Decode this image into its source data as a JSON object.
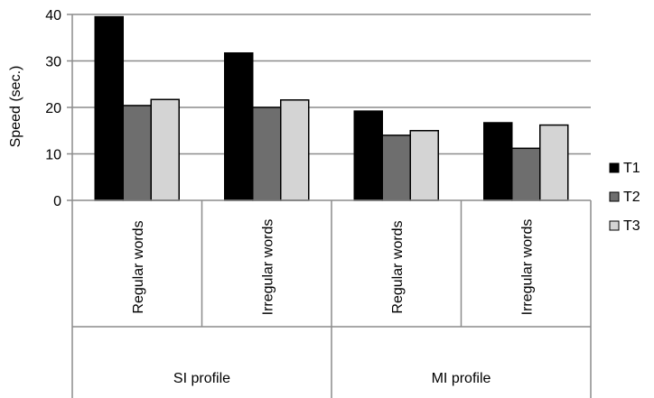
{
  "chart_data": {
    "type": "bar",
    "ylabel": "Speed (sec.)",
    "ylim": [
      0,
      40
    ],
    "yticks": [
      0,
      10,
      20,
      30,
      40
    ],
    "grid": true,
    "legend_position": "right",
    "groups": [
      {
        "name": "SI profile",
        "categories": [
          "Regular words",
          "Irregular words"
        ]
      },
      {
        "name": "MI profile",
        "categories": [
          "Regular words",
          "Irregular words"
        ]
      }
    ],
    "categories": [
      "Regular words",
      "Irregular words",
      "Regular words",
      "Irregular words"
    ],
    "series": [
      {
        "name": "T1",
        "color": "#000000",
        "values": [
          39.5,
          31.7,
          19.2,
          16.7
        ]
      },
      {
        "name": "T2",
        "color": "#6e6e6e",
        "values": [
          20.4,
          20.0,
          14.0,
          11.2
        ]
      },
      {
        "name": "T3",
        "color": "#d4d4d4",
        "values": [
          21.7,
          21.6,
          15.0,
          16.2
        ]
      }
    ]
  }
}
